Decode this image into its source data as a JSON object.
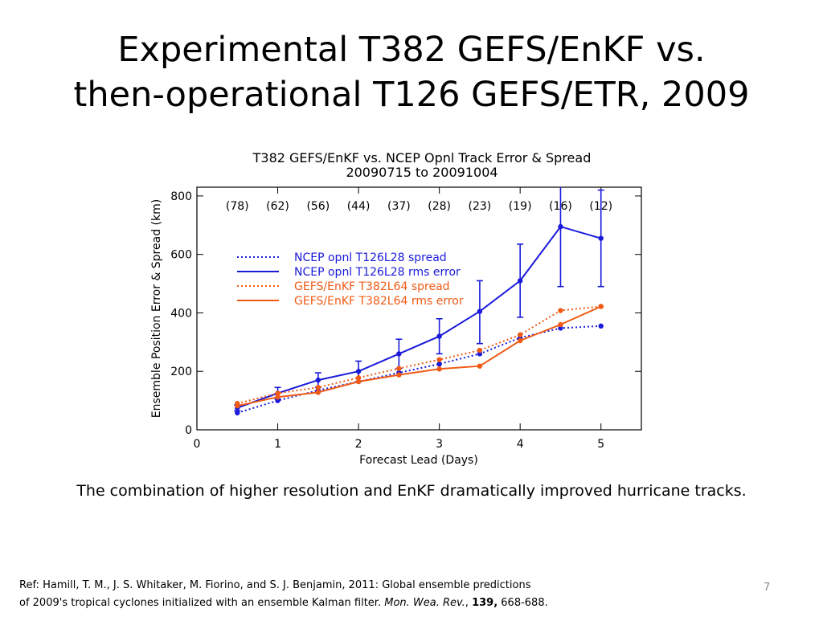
{
  "slide": {
    "title_line1": "Experimental T382 GEFS/EnKF vs.",
    "title_line2": "then-operational T126 GEFS/ETR, 2009",
    "caption": "The combination of higher resolution and EnKF dramatically improved hurricane tracks.",
    "ref": {
      "prefix": "Ref: Hamill, T. M., J. S. Whitaker, M. Fiorino, and S. J. Benjamin, 2011:  Global ensemble predictions",
      "line2": "of 2009's tropical cyclones initialized with an ensemble Kalman filter.  ",
      "journal": "Mon. Wea. Rev.",
      "sep": ", ",
      "volume": "139,",
      "pages": " 668-688."
    },
    "page_number": "7"
  },
  "chart_data": {
    "type": "line",
    "title": "T382 GEFS/EnKF vs. NCEP Opnl Track Error & Spread",
    "subtitle": "20090715 to 20091004",
    "xlabel": "Forecast Lead (Days)",
    "ylabel": "Ensemble Position Error & Spread (km)",
    "xlim": [
      0,
      5.5
    ],
    "ylim": [
      0,
      830
    ],
    "xticks": [
      0,
      1,
      2,
      3,
      4,
      5
    ],
    "yticks": [
      0,
      200,
      400,
      600,
      800
    ],
    "grid": false,
    "legend_position": "upper-left",
    "x": [
      0.5,
      1.0,
      1.5,
      2.0,
      2.5,
      3.0,
      3.5,
      4.0,
      4.5,
      5.0
    ],
    "sample_counts": [
      "(78)",
      "(62)",
      "(56)",
      "(44)",
      "(37)",
      "(28)",
      "(23)",
      "(19)",
      "(16)",
      "(12)"
    ],
    "series": [
      {
        "name": "NCEP opnl T126L28 spread",
        "color": "#1a1adb",
        "style": "dotted",
        "values": [
          58,
          100,
          135,
          165,
          195,
          225,
          260,
          315,
          348,
          355
        ]
      },
      {
        "name": "NCEP opnl T126L28 rms error",
        "color": "#1a1adb",
        "style": "solid",
        "values": [
          75,
          125,
          170,
          200,
          260,
          320,
          405,
          510,
          695,
          655
        ],
        "error_bars": [
          [
            65,
            85
          ],
          [
            105,
            145
          ],
          [
            145,
            195
          ],
          [
            165,
            235
          ],
          [
            210,
            310
          ],
          [
            260,
            380
          ],
          [
            295,
            510
          ],
          [
            385,
            635
          ],
          [
            490,
            920
          ],
          [
            490,
            820
          ]
        ]
      },
      {
        "name": "GEFS/EnKF T382L64 spread",
        "color": "#f05a14",
        "style": "dotted",
        "values": [
          90,
          125,
          145,
          178,
          210,
          240,
          272,
          325,
          408,
          422
        ]
      },
      {
        "name": "GEFS/EnKF T382L64 rms error",
        "color": "#f05a14",
        "style": "solid",
        "values": [
          82,
          112,
          128,
          165,
          188,
          208,
          218,
          305,
          360,
          422
        ]
      }
    ]
  }
}
